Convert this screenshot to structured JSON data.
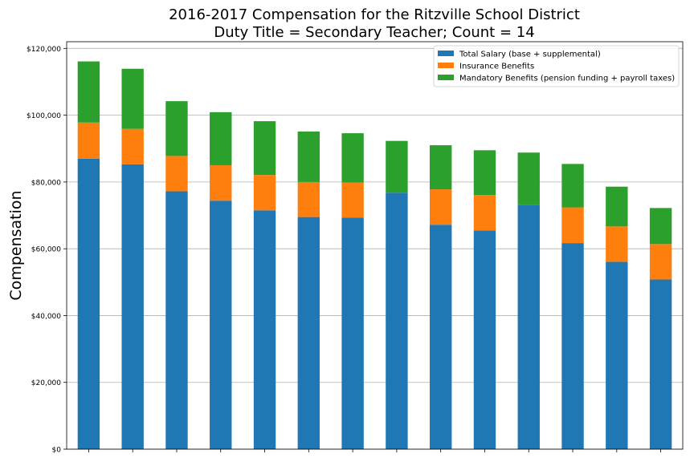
{
  "chart_data": {
    "type": "bar",
    "stacked": true,
    "title": "2016-2017 Compensation for the Ritzville School District",
    "subtitle": "Duty Title = Secondary Teacher; Count = 14",
    "xlabel": "",
    "ylabel": "Compensation",
    "ylim": [
      0,
      122000
    ],
    "yticks": [
      0,
      20000,
      40000,
      60000,
      80000,
      100000,
      120000
    ],
    "ytick_labels": [
      "$0",
      "$20,000",
      "$40,000",
      "$60,000",
      "$80,000",
      "$100,000",
      "$120,000"
    ],
    "grid": true,
    "legend_position": "top-right",
    "series": [
      {
        "name": "Total Salary (base + supplemental)",
        "color": "#1f77b4",
        "values": [
          87000,
          85300,
          77200,
          74400,
          71500,
          69500,
          69300,
          76800,
          67200,
          65500,
          73200,
          61700,
          56100,
          50800
        ]
      },
      {
        "name": "Insurance Benefits",
        "color": "#ff7f0e",
        "values": [
          10800,
          10600,
          10600,
          10600,
          10600,
          10500,
          10500,
          0,
          10600,
          10600,
          0,
          10700,
          10600,
          10600
        ]
      },
      {
        "name": "Mandatory Benefits (pension funding + payroll taxes)",
        "color": "#2ca02c",
        "values": [
          18300,
          18000,
          16400,
          15900,
          16100,
          15100,
          14800,
          15500,
          13200,
          13400,
          15600,
          13000,
          11900,
          10800
        ]
      }
    ]
  }
}
